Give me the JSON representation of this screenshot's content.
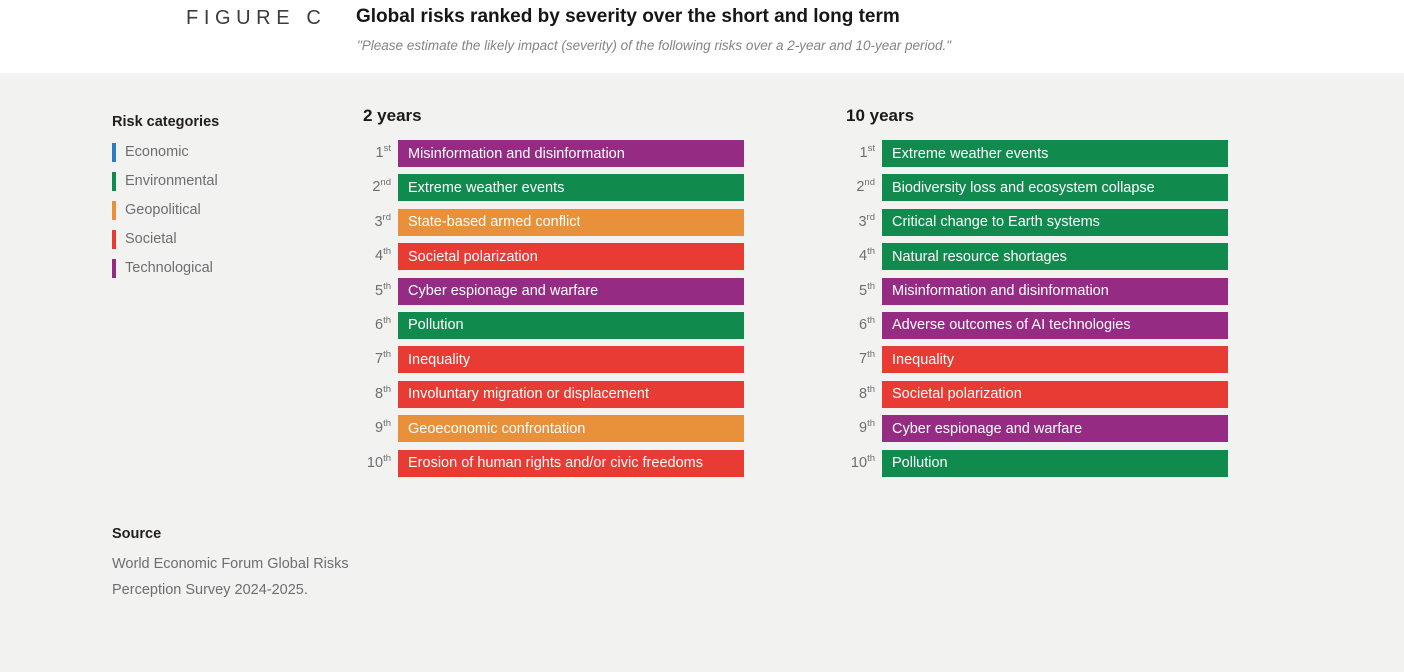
{
  "header": {
    "figure_label": "FIGURE C",
    "title": "Global risks ranked by severity over the short and long term",
    "subtitle": "\"Please estimate the likely impact (severity) of the following risks over a 2-year and 10-year period.\""
  },
  "legend": {
    "title": "Risk categories",
    "items": [
      {
        "label": "Economic",
        "color": "#2d7bc1"
      },
      {
        "label": "Environmental",
        "color": "#118a4e"
      },
      {
        "label": "Geopolitical",
        "color": "#e8913a"
      },
      {
        "label": "Societal",
        "color": "#e73b34"
      },
      {
        "label": "Technological",
        "color": "#962b84"
      }
    ]
  },
  "chart_data": {
    "type": "table",
    "description": "Ranked lists of global risks by severity; bar color encodes risk category",
    "category_colors": {
      "Economic": "#2d7bc1",
      "Environmental": "#118a4e",
      "Geopolitical": "#e8913a",
      "Societal": "#e73b34",
      "Technological": "#962b84"
    },
    "columns": [
      {
        "title": "2 years",
        "rows": [
          {
            "rank": 1,
            "ordinal": "st",
            "label": "Misinformation and disinformation",
            "category": "Technological",
            "color": "#962b84"
          },
          {
            "rank": 2,
            "ordinal": "nd",
            "label": "Extreme weather events",
            "category": "Environmental",
            "color": "#118a4e"
          },
          {
            "rank": 3,
            "ordinal": "rd",
            "label": "State-based armed conflict",
            "category": "Geopolitical",
            "color": "#e8913a"
          },
          {
            "rank": 4,
            "ordinal": "th",
            "label": "Societal polarization",
            "category": "Societal",
            "color": "#e73b34"
          },
          {
            "rank": 5,
            "ordinal": "th",
            "label": "Cyber espionage and warfare",
            "category": "Technological",
            "color": "#962b84"
          },
          {
            "rank": 6,
            "ordinal": "th",
            "label": "Pollution",
            "category": "Environmental",
            "color": "#118a4e"
          },
          {
            "rank": 7,
            "ordinal": "th",
            "label": "Inequality",
            "category": "Societal",
            "color": "#e73b34"
          },
          {
            "rank": 8,
            "ordinal": "th",
            "label": "Involuntary migration or displacement",
            "category": "Societal",
            "color": "#e73b34"
          },
          {
            "rank": 9,
            "ordinal": "th",
            "label": "Geoeconomic confrontation",
            "category": "Geopolitical",
            "color": "#e8913a"
          },
          {
            "rank": 10,
            "ordinal": "th",
            "label": "Erosion of human rights and/or civic freedoms",
            "category": "Societal",
            "color": "#e73b34"
          }
        ]
      },
      {
        "title": "10 years",
        "rows": [
          {
            "rank": 1,
            "ordinal": "st",
            "label": "Extreme weather events",
            "category": "Environmental",
            "color": "#118a4e"
          },
          {
            "rank": 2,
            "ordinal": "nd",
            "label": "Biodiversity loss and ecosystem collapse",
            "category": "Environmental",
            "color": "#118a4e"
          },
          {
            "rank": 3,
            "ordinal": "rd",
            "label": "Critical change to Earth systems",
            "category": "Environmental",
            "color": "#118a4e"
          },
          {
            "rank": 4,
            "ordinal": "th",
            "label": "Natural resource shortages",
            "category": "Environmental",
            "color": "#118a4e"
          },
          {
            "rank": 5,
            "ordinal": "th",
            "label": "Misinformation and disinformation",
            "category": "Technological",
            "color": "#962b84"
          },
          {
            "rank": 6,
            "ordinal": "th",
            "label": "Adverse outcomes of AI technologies",
            "category": "Technological",
            "color": "#962b84"
          },
          {
            "rank": 7,
            "ordinal": "th",
            "label": "Inequality",
            "category": "Societal",
            "color": "#e73b34"
          },
          {
            "rank": 8,
            "ordinal": "th",
            "label": "Societal polarization",
            "category": "Societal",
            "color": "#e73b34"
          },
          {
            "rank": 9,
            "ordinal": "th",
            "label": "Cyber espionage and warfare",
            "category": "Technological",
            "color": "#962b84"
          },
          {
            "rank": 10,
            "ordinal": "th",
            "label": "Pollution",
            "category": "Environmental",
            "color": "#118a4e"
          }
        ]
      }
    ]
  },
  "source": {
    "title": "Source",
    "line1": "World Economic Forum Global Risks",
    "line2": "Perception Survey 2024-2025."
  }
}
